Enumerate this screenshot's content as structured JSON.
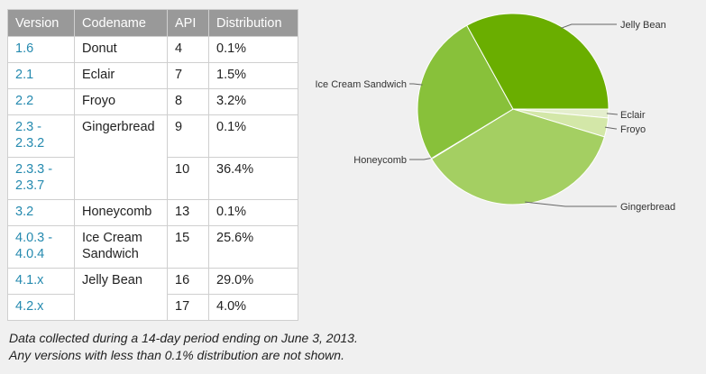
{
  "table": {
    "headers": [
      "Version",
      "Codename",
      "API",
      "Distribution"
    ],
    "rows": [
      {
        "version": "1.6",
        "codename": "Donut",
        "api": "4",
        "distribution": "0.1%"
      },
      {
        "version": "2.1",
        "codename": "Eclair",
        "api": "7",
        "distribution": "1.5%"
      },
      {
        "version": "2.2",
        "codename": "Froyo",
        "api": "8",
        "distribution": "3.2%"
      },
      {
        "version": "2.3 -\n2.3.2",
        "codename": "Gingerbread",
        "api": "9",
        "distribution": "0.1%"
      },
      {
        "version": "2.3.3 -\n2.3.7",
        "codename": "",
        "api": "10",
        "distribution": "36.4%"
      },
      {
        "version": "3.2",
        "codename": "Honeycomb",
        "api": "13",
        "distribution": "0.1%"
      },
      {
        "version": "4.0.3 -\n4.0.4",
        "codename": "Ice Cream\nSandwich",
        "api": "15",
        "distribution": "25.6%"
      },
      {
        "version": "4.1.x",
        "codename": "Jelly Bean",
        "api": "16",
        "distribution": "29.0%"
      },
      {
        "version": "4.2.x",
        "codename": "",
        "api": "17",
        "distribution": "4.0%"
      }
    ]
  },
  "notes": [
    "Data collected during a 14-day period ending on June 3, 2013.",
    "Any versions with less than 0.1% distribution are not shown."
  ],
  "chart_data": {
    "type": "pie",
    "title": "",
    "slices": [
      {
        "label": "Eclair",
        "value": 1.5,
        "color": "#e4eecd"
      },
      {
        "label": "Froyo",
        "value": 3.2,
        "color": "#d3e7a8"
      },
      {
        "label": "Gingerbread",
        "value": 36.5,
        "color": "#a4cf62"
      },
      {
        "label": "Honeycomb",
        "value": 0.1,
        "color": "#8bc43d"
      },
      {
        "label": "Ice Cream Sandwich",
        "value": 25.6,
        "color": "#88c13a"
      },
      {
        "label": "Jelly Bean",
        "value": 33.0,
        "color": "#6aae00"
      }
    ],
    "start_angle_deg": 0,
    "direction": "clockwise",
    "legend": "none"
  }
}
